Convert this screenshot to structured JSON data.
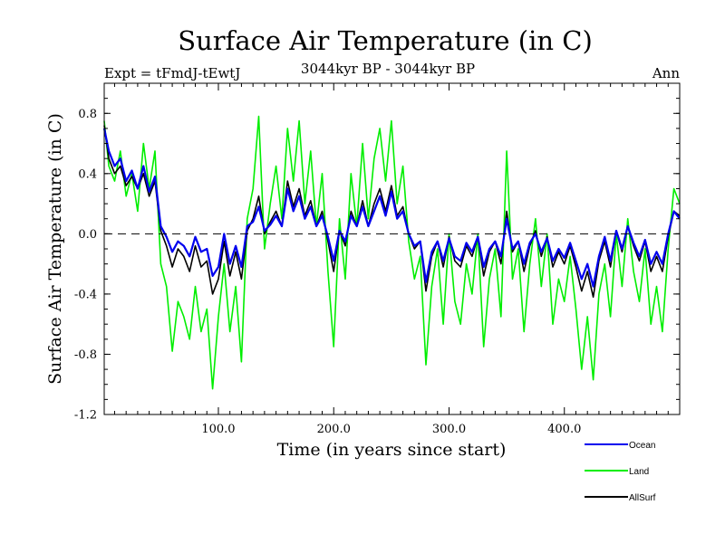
{
  "chart_data": {
    "type": "line",
    "title": "Surface Air Temperature (in C)",
    "subtitle": "3044kyr BP - 3044kyr BP",
    "experiment": "Expt = tFmdJ-tEwtJ",
    "season": "Ann",
    "xlabel": "Time (in years since start)",
    "ylabel": "Surface Air Temperature (in C)",
    "xlim": [
      1,
      500
    ],
    "ylim": [
      -1.2,
      1.0
    ],
    "x_ticks": [
      {
        "value": 100,
        "label": "100.0"
      },
      {
        "value": 200,
        "label": "200.0"
      },
      {
        "value": 300,
        "label": "300.0"
      },
      {
        "value": 400,
        "label": "400.0"
      }
    ],
    "y_ticks": [
      {
        "value": 0.8,
        "label": "0.8"
      },
      {
        "value": 0.4,
        "label": "0.4"
      },
      {
        "value": 0.0,
        "label": "0.0"
      },
      {
        "value": -0.4,
        "label": "-0.4"
      },
      {
        "value": -0.8,
        "label": "-0.8"
      },
      {
        "value": -1.2,
        "label": "-1.2"
      }
    ],
    "zero_line": true,
    "series": [
      {
        "name": "Land",
        "color": "#00ee00",
        "points": [
          [
            1,
            0.75
          ],
          [
            5,
            0.45
          ],
          [
            10,
            0.35
          ],
          [
            15,
            0.55
          ],
          [
            20,
            0.25
          ],
          [
            25,
            0.4
          ],
          [
            30,
            0.15
          ],
          [
            35,
            0.6
          ],
          [
            40,
            0.3
          ],
          [
            45,
            0.55
          ],
          [
            50,
            -0.2
          ],
          [
            55,
            -0.35
          ],
          [
            60,
            -0.78
          ],
          [
            65,
            -0.45
          ],
          [
            70,
            -0.55
          ],
          [
            75,
            -0.7
          ],
          [
            80,
            -0.35
          ],
          [
            85,
            -0.65
          ],
          [
            90,
            -0.5
          ],
          [
            95,
            -1.03
          ],
          [
            100,
            -0.55
          ],
          [
            105,
            -0.2
          ],
          [
            110,
            -0.65
          ],
          [
            115,
            -0.35
          ],
          [
            120,
            -0.85
          ],
          [
            125,
            0.1
          ],
          [
            130,
            0.3
          ],
          [
            135,
            0.78
          ],
          [
            140,
            -0.1
          ],
          [
            145,
            0.2
          ],
          [
            150,
            0.45
          ],
          [
            155,
            0.1
          ],
          [
            160,
            0.7
          ],
          [
            165,
            0.35
          ],
          [
            170,
            0.75
          ],
          [
            175,
            0.2
          ],
          [
            180,
            0.55
          ],
          [
            185,
            0.05
          ],
          [
            190,
            0.4
          ],
          [
            195,
            -0.25
          ],
          [
            200,
            -0.75
          ],
          [
            205,
            0.1
          ],
          [
            210,
            -0.3
          ],
          [
            215,
            0.4
          ],
          [
            220,
            0.05
          ],
          [
            225,
            0.6
          ],
          [
            230,
            0.1
          ],
          [
            235,
            0.5
          ],
          [
            240,
            0.7
          ],
          [
            245,
            0.35
          ],
          [
            250,
            0.75
          ],
          [
            255,
            0.2
          ],
          [
            260,
            0.45
          ],
          [
            265,
            -0.05
          ],
          [
            270,
            -0.3
          ],
          [
            275,
            -0.15
          ],
          [
            280,
            -0.87
          ],
          [
            285,
            -0.35
          ],
          [
            290,
            -0.1
          ],
          [
            295,
            -0.6
          ],
          [
            300,
            0.0
          ],
          [
            305,
            -0.45
          ],
          [
            310,
            -0.6
          ],
          [
            315,
            -0.2
          ],
          [
            320,
            -0.4
          ],
          [
            325,
            0.0
          ],
          [
            330,
            -0.75
          ],
          [
            335,
            -0.3
          ],
          [
            340,
            -0.1
          ],
          [
            345,
            -0.55
          ],
          [
            350,
            0.55
          ],
          [
            355,
            -0.3
          ],
          [
            360,
            -0.1
          ],
          [
            365,
            -0.65
          ],
          [
            370,
            -0.2
          ],
          [
            375,
            0.1
          ],
          [
            380,
            -0.35
          ],
          [
            385,
            0.0
          ],
          [
            390,
            -0.6
          ],
          [
            395,
            -0.3
          ],
          [
            400,
            -0.45
          ],
          [
            405,
            -0.15
          ],
          [
            410,
            -0.5
          ],
          [
            415,
            -0.9
          ],
          [
            420,
            -0.55
          ],
          [
            425,
            -0.97
          ],
          [
            430,
            -0.4
          ],
          [
            435,
            -0.2
          ],
          [
            440,
            -0.55
          ],
          [
            445,
            0.0
          ],
          [
            450,
            -0.35
          ],
          [
            455,
            0.1
          ],
          [
            460,
            -0.25
          ],
          [
            465,
            -0.45
          ],
          [
            470,
            -0.1
          ],
          [
            475,
            -0.6
          ],
          [
            480,
            -0.35
          ],
          [
            485,
            -0.65
          ],
          [
            490,
            -0.1
          ],
          [
            495,
            0.3
          ],
          [
            500,
            0.2
          ]
        ]
      },
      {
        "name": "AllSurf",
        "color": "#000000",
        "points": [
          [
            1,
            0.72
          ],
          [
            5,
            0.5
          ],
          [
            10,
            0.4
          ],
          [
            15,
            0.45
          ],
          [
            20,
            0.32
          ],
          [
            25,
            0.38
          ],
          [
            30,
            0.3
          ],
          [
            35,
            0.4
          ],
          [
            40,
            0.25
          ],
          [
            45,
            0.35
          ],
          [
            50,
            0.02
          ],
          [
            55,
            -0.08
          ],
          [
            60,
            -0.22
          ],
          [
            65,
            -0.1
          ],
          [
            70,
            -0.15
          ],
          [
            75,
            -0.25
          ],
          [
            80,
            -0.08
          ],
          [
            85,
            -0.22
          ],
          [
            90,
            -0.18
          ],
          [
            95,
            -0.4
          ],
          [
            100,
            -0.3
          ],
          [
            105,
            -0.05
          ],
          [
            110,
            -0.28
          ],
          [
            115,
            -0.12
          ],
          [
            120,
            -0.3
          ],
          [
            125,
            0.02
          ],
          [
            130,
            0.1
          ],
          [
            135,
            0.25
          ],
          [
            140,
            0.0
          ],
          [
            145,
            0.08
          ],
          [
            150,
            0.15
          ],
          [
            155,
            0.05
          ],
          [
            160,
            0.35
          ],
          [
            165,
            0.18
          ],
          [
            170,
            0.3
          ],
          [
            175,
            0.12
          ],
          [
            180,
            0.22
          ],
          [
            185,
            0.05
          ],
          [
            190,
            0.15
          ],
          [
            195,
            -0.05
          ],
          [
            200,
            -0.25
          ],
          [
            205,
            0.02
          ],
          [
            210,
            -0.08
          ],
          [
            215,
            0.15
          ],
          [
            220,
            0.05
          ],
          [
            225,
            0.22
          ],
          [
            230,
            0.05
          ],
          [
            235,
            0.2
          ],
          [
            240,
            0.3
          ],
          [
            245,
            0.15
          ],
          [
            250,
            0.32
          ],
          [
            255,
            0.12
          ],
          [
            260,
            0.18
          ],
          [
            265,
            0.0
          ],
          [
            270,
            -0.1
          ],
          [
            275,
            -0.05
          ],
          [
            280,
            -0.38
          ],
          [
            285,
            -0.15
          ],
          [
            290,
            -0.05
          ],
          [
            295,
            -0.22
          ],
          [
            300,
            -0.02
          ],
          [
            305,
            -0.18
          ],
          [
            310,
            -0.22
          ],
          [
            315,
            -0.08
          ],
          [
            320,
            -0.15
          ],
          [
            325,
            -0.02
          ],
          [
            330,
            -0.28
          ],
          [
            335,
            -0.12
          ],
          [
            340,
            -0.05
          ],
          [
            345,
            -0.2
          ],
          [
            350,
            0.15
          ],
          [
            355,
            -0.12
          ],
          [
            360,
            -0.05
          ],
          [
            365,
            -0.25
          ],
          [
            370,
            -0.08
          ],
          [
            375,
            0.02
          ],
          [
            380,
            -0.15
          ],
          [
            385,
            -0.02
          ],
          [
            390,
            -0.22
          ],
          [
            395,
            -0.12
          ],
          [
            400,
            -0.2
          ],
          [
            405,
            -0.08
          ],
          [
            410,
            -0.22
          ],
          [
            415,
            -0.38
          ],
          [
            420,
            -0.25
          ],
          [
            425,
            -0.42
          ],
          [
            430,
            -0.18
          ],
          [
            435,
            -0.05
          ],
          [
            440,
            -0.22
          ],
          [
            445,
            0.02
          ],
          [
            450,
            -0.12
          ],
          [
            455,
            0.05
          ],
          [
            460,
            -0.08
          ],
          [
            465,
            -0.18
          ],
          [
            470,
            -0.05
          ],
          [
            475,
            -0.25
          ],
          [
            480,
            -0.15
          ],
          [
            485,
            -0.25
          ],
          [
            490,
            -0.02
          ],
          [
            495,
            0.15
          ],
          [
            500,
            0.12
          ]
        ]
      },
      {
        "name": "Ocean",
        "color": "#0000ee",
        "points": [
          [
            1,
            0.7
          ],
          [
            5,
            0.55
          ],
          [
            10,
            0.45
          ],
          [
            15,
            0.5
          ],
          [
            20,
            0.35
          ],
          [
            25,
            0.42
          ],
          [
            30,
            0.3
          ],
          [
            35,
            0.45
          ],
          [
            40,
            0.28
          ],
          [
            45,
            0.38
          ],
          [
            50,
            0.05
          ],
          [
            55,
            -0.02
          ],
          [
            60,
            -0.12
          ],
          [
            65,
            -0.05
          ],
          [
            70,
            -0.08
          ],
          [
            75,
            -0.15
          ],
          [
            80,
            -0.02
          ],
          [
            85,
            -0.12
          ],
          [
            90,
            -0.1
          ],
          [
            95,
            -0.28
          ],
          [
            100,
            -0.22
          ],
          [
            105,
            0.0
          ],
          [
            110,
            -0.2
          ],
          [
            115,
            -0.08
          ],
          [
            120,
            -0.22
          ],
          [
            125,
            0.05
          ],
          [
            130,
            0.08
          ],
          [
            135,
            0.18
          ],
          [
            140,
            0.02
          ],
          [
            145,
            0.06
          ],
          [
            150,
            0.12
          ],
          [
            155,
            0.05
          ],
          [
            160,
            0.3
          ],
          [
            165,
            0.15
          ],
          [
            170,
            0.25
          ],
          [
            175,
            0.1
          ],
          [
            180,
            0.18
          ],
          [
            185,
            0.05
          ],
          [
            190,
            0.12
          ],
          [
            195,
            -0.02
          ],
          [
            200,
            -0.18
          ],
          [
            205,
            0.02
          ],
          [
            210,
            -0.05
          ],
          [
            215,
            0.12
          ],
          [
            220,
            0.05
          ],
          [
            225,
            0.18
          ],
          [
            230,
            0.05
          ],
          [
            235,
            0.15
          ],
          [
            240,
            0.25
          ],
          [
            245,
            0.12
          ],
          [
            250,
            0.28
          ],
          [
            255,
            0.1
          ],
          [
            260,
            0.15
          ],
          [
            265,
            0.0
          ],
          [
            270,
            -0.08
          ],
          [
            275,
            -0.05
          ],
          [
            280,
            -0.32
          ],
          [
            285,
            -0.12
          ],
          [
            290,
            -0.05
          ],
          [
            295,
            -0.18
          ],
          [
            300,
            -0.03
          ],
          [
            305,
            -0.15
          ],
          [
            310,
            -0.18
          ],
          [
            315,
            -0.06
          ],
          [
            320,
            -0.12
          ],
          [
            325,
            -0.02
          ],
          [
            330,
            -0.22
          ],
          [
            335,
            -0.1
          ],
          [
            340,
            -0.05
          ],
          [
            345,
            -0.15
          ],
          [
            350,
            0.1
          ],
          [
            355,
            -0.1
          ],
          [
            360,
            -0.05
          ],
          [
            365,
            -0.2
          ],
          [
            370,
            -0.06
          ],
          [
            375,
            0.0
          ],
          [
            380,
            -0.12
          ],
          [
            385,
            -0.03
          ],
          [
            390,
            -0.18
          ],
          [
            395,
            -0.1
          ],
          [
            400,
            -0.16
          ],
          [
            405,
            -0.06
          ],
          [
            410,
            -0.18
          ],
          [
            415,
            -0.3
          ],
          [
            420,
            -0.2
          ],
          [
            425,
            -0.35
          ],
          [
            430,
            -0.15
          ],
          [
            435,
            -0.02
          ],
          [
            440,
            -0.18
          ],
          [
            445,
            0.02
          ],
          [
            450,
            -0.1
          ],
          [
            455,
            0.05
          ],
          [
            460,
            -0.06
          ],
          [
            465,
            -0.15
          ],
          [
            470,
            -0.04
          ],
          [
            475,
            -0.2
          ],
          [
            480,
            -0.12
          ],
          [
            485,
            -0.2
          ],
          [
            490,
            0.0
          ],
          [
            495,
            0.15
          ],
          [
            500,
            0.1
          ]
        ]
      }
    ],
    "legend": [
      {
        "name": "Ocean",
        "color": "#0000ee"
      },
      {
        "name": "Land",
        "color": "#00ee00"
      },
      {
        "name": "AllSurf",
        "color": "#000000"
      }
    ]
  }
}
